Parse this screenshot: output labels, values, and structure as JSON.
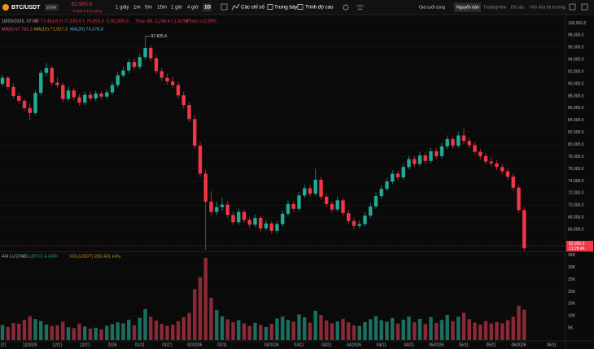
{
  "toolbar": {
    "symbol": "BTC/USDT",
    "leverage": "10 lần",
    "price": "62,905.0",
    "change": "-3,626.2 (-5.44%)",
    "timeframes": [
      "1 giây",
      "1m",
      "5m",
      "15m",
      "1 giờ",
      "4 giờ",
      "1D"
    ],
    "tools": [
      "Các chỉ số",
      "Trưng bày",
      "Trình độ cao"
    ],
    "price_type": "Giá cuối cùng",
    "views": [
      "Nguyên bản",
      "TradingView",
      "Độ sâu",
      "Vốn hóa thị trường"
    ]
  },
  "legend": {
    "date": "18/05/2026, 07:00",
    "ohlc": [
      "O 77,453.8",
      "H 77,533.0",
      "L 76,053.0",
      "C 82,905.0"
    ],
    "change": "Thay đổi -1,240.4 (-1.62%)",
    "range": "Phạm vi 2.28%",
    "ma": [
      "MA(5) 67,781.3",
      "MA(10) 71,027.3",
      "MA(20) 74,078.8"
    ],
    "ma_colors": [
      "#e84a8a",
      "#e0a526",
      "#4fb6d8"
    ]
  },
  "chart_data": {
    "type": "candlestick",
    "categories": [
      "1/21",
      null,
      null,
      null,
      null,
      "12/2025",
      null,
      null,
      null,
      null,
      "12/11",
      null,
      null,
      null,
      null,
      "12/21",
      null,
      null,
      null,
      null,
      "2026",
      null,
      null,
      null,
      null,
      "01/11",
      null,
      null,
      null,
      null,
      "01/21",
      null,
      null,
      null,
      null,
      "02/2026",
      null,
      null,
      null,
      null,
      "02/11",
      null,
      null,
      null,
      null,
      null,
      null,
      null,
      null,
      "03/2026",
      null,
      null,
      null,
      null,
      "03/11",
      null,
      null,
      null,
      null,
      "03/21",
      null,
      null,
      null,
      null,
      "04/2026",
      null,
      null,
      null,
      null,
      "04/11",
      null,
      null,
      null,
      null,
      "04/21",
      null,
      null,
      null,
      null,
      "05/2026",
      null,
      null,
      null,
      null,
      "05/11",
      null,
      null,
      null,
      null,
      "05/21",
      null,
      null,
      null,
      null,
      "06/2026",
      null,
      null,
      null,
      null,
      null,
      "06/11"
    ],
    "ohlc": [
      [
        90000,
        91500,
        89600,
        91000
      ],
      [
        91000,
        91300,
        89100,
        89500
      ],
      [
        89500,
        90100,
        87600,
        88000
      ],
      [
        88000,
        88600,
        86700,
        87200
      ],
      [
        87200,
        87600,
        85500,
        86000
      ],
      [
        86000,
        86800,
        84000,
        85200
      ],
      [
        85200,
        88900,
        84800,
        88500
      ],
      [
        88500,
        92300,
        88100,
        91800
      ],
      [
        91800,
        93400,
        91200,
        92600
      ],
      [
        92600,
        93000,
        89700,
        90200
      ],
      [
        90200,
        91100,
        89300,
        89800
      ],
      [
        89800,
        90200,
        87000,
        87500
      ],
      [
        87500,
        89500,
        87100,
        88900
      ],
      [
        88900,
        89400,
        87300,
        87800
      ],
      [
        87800,
        88300,
        86400,
        86900
      ],
      [
        86900,
        88700,
        86500,
        88200
      ],
      [
        88200,
        88800,
        87100,
        87600
      ],
      [
        87600,
        88900,
        87200,
        88400
      ],
      [
        88400,
        88900,
        87400,
        87900
      ],
      [
        87900,
        89100,
        87500,
        88600
      ],
      [
        88600,
        90300,
        88200,
        89800
      ],
      [
        89800,
        91900,
        89400,
        91400
      ],
      [
        91400,
        92800,
        91000,
        92200
      ],
      [
        92200,
        94100,
        91800,
        93600
      ],
      [
        93600,
        94200,
        92300,
        92800
      ],
      [
        92800,
        95000,
        92400,
        94400
      ],
      [
        94400,
        97825.4,
        94000,
        95900
      ],
      [
        95900,
        96400,
        93700,
        94200
      ],
      [
        94200,
        94700,
        91600,
        92100
      ],
      [
        92100,
        92600,
        90500,
        91000
      ],
      [
        91000,
        91700,
        89900,
        90400
      ],
      [
        90400,
        91200,
        89300,
        89800
      ],
      [
        89800,
        90300,
        87600,
        88100
      ],
      [
        88100,
        88700,
        86000,
        86500
      ],
      [
        86500,
        87000,
        83700,
        84200
      ],
      [
        84200,
        84800,
        79300,
        79800
      ],
      [
        79800,
        80400,
        74600,
        75200
      ],
      [
        75200,
        75900,
        62600,
        70600
      ],
      [
        70600,
        72300,
        68300,
        68900
      ],
      [
        68900,
        70600,
        68400,
        69700
      ],
      [
        69700,
        71200,
        69100,
        70100
      ],
      [
        70100,
        70700,
        67900,
        68400
      ],
      [
        68400,
        69000,
        66700,
        67200
      ],
      [
        67200,
        69500,
        66800,
        68900
      ],
      [
        68900,
        69300,
        67100,
        67600
      ],
      [
        67600,
        68100,
        66300,
        66800
      ],
      [
        66800,
        68500,
        66400,
        67900
      ],
      [
        67900,
        68300,
        65700,
        66200
      ],
      [
        66200,
        67600,
        65800,
        67000
      ],
      [
        67000,
        67400,
        65300,
        65800
      ],
      [
        65800,
        67500,
        65400,
        66900
      ],
      [
        66900,
        69200,
        66500,
        68600
      ],
      [
        68600,
        70800,
        68200,
        70200
      ],
      [
        70200,
        70700,
        68900,
        69400
      ],
      [
        69400,
        72200,
        69000,
        71600
      ],
      [
        71600,
        73400,
        71200,
        72800
      ],
      [
        72800,
        73300,
        71400,
        71900
      ],
      [
        71900,
        76000,
        71500,
        74200
      ],
      [
        74200,
        74700,
        70900,
        71400
      ],
      [
        71400,
        71900,
        69700,
        70200
      ],
      [
        70200,
        70700,
        68800,
        69300
      ],
      [
        69300,
        71400,
        68900,
        70800
      ],
      [
        70800,
        71200,
        68200,
        68700
      ],
      [
        68700,
        69200,
        66900,
        67400
      ],
      [
        67400,
        67900,
        66100,
        66600
      ],
      [
        66600,
        67500,
        66200,
        66900
      ],
      [
        66900,
        68900,
        66500,
        68300
      ],
      [
        68300,
        70400,
        67900,
        69800
      ],
      [
        69800,
        72100,
        69400,
        71500
      ],
      [
        71500,
        73300,
        71100,
        72700
      ],
      [
        72700,
        74500,
        72300,
        73900
      ],
      [
        73900,
        75800,
        73500,
        75200
      ],
      [
        75200,
        75700,
        74100,
        74600
      ],
      [
        74600,
        76900,
        74200,
        76300
      ],
      [
        76300,
        78200,
        75900,
        77600
      ],
      [
        77600,
        78100,
        76300,
        76800
      ],
      [
        76800,
        78800,
        76400,
        78200
      ],
      [
        78200,
        78700,
        76800,
        77300
      ],
      [
        77300,
        79500,
        76900,
        78900
      ],
      [
        78900,
        79400,
        77600,
        78100
      ],
      [
        78100,
        80300,
        77700,
        79700
      ],
      [
        79700,
        81500,
        79300,
        80900
      ],
      [
        80900,
        81400,
        79300,
        79800
      ],
      [
        79800,
        82100,
        79400,
        81500
      ],
      [
        81500,
        82700,
        80100,
        80600
      ],
      [
        80600,
        81100,
        79400,
        79900
      ],
      [
        79900,
        80400,
        78300,
        78800
      ],
      [
        78800,
        79300,
        77600,
        78100
      ],
      [
        78100,
        78600,
        76700,
        77200
      ],
      [
        77200,
        77900,
        76400,
        76900
      ],
      [
        76900,
        77400,
        75800,
        76300
      ],
      [
        76300,
        76800,
        75100,
        75600
      ],
      [
        75600,
        76100,
        74200,
        74700
      ],
      [
        74700,
        75200,
        72400,
        72900
      ],
      [
        72900,
        73400,
        68700,
        69200
      ],
      [
        69200,
        69700,
        62500,
        62905
      ],
      null,
      null,
      null,
      null,
      null
    ],
    "volume": [
      6200,
      5400,
      7100,
      6800,
      8300,
      9800,
      8700,
      7900,
      6400,
      5800,
      6100,
      7600,
      5300,
      4900,
      6800,
      5600,
      4700,
      5100,
      4400,
      5900,
      6600,
      7300,
      6900,
      8400,
      6100,
      9200,
      12800,
      9600,
      8100,
      6700,
      5900,
      6300,
      7800,
      9400,
      11200,
      21000,
      26000,
      34000,
      17500,
      12400,
      9800,
      8600,
      7400,
      8200,
      6900,
      5800,
      7100,
      6300,
      5400,
      6700,
      8900,
      9700,
      8300,
      7600,
      10600,
      9400,
      7200,
      12100,
      10300,
      8100,
      6900,
      7700,
      8800,
      7300,
      6100,
      5900,
      7400,
      8600,
      9900,
      8200,
      7600,
      9100,
      6800,
      8400,
      9700,
      7300,
      8800,
      6600,
      9500,
      7100,
      8300,
      10400,
      7800,
      9600,
      11300,
      8700,
      7200,
      6400,
      7900,
      6800,
      7400,
      6900,
      8200,
      9600,
      14200,
      12600,
      null,
      null,
      null,
      null,
      null
    ],
    "ylim": [
      62400,
      101400
    ],
    "yticks": [
      {
        "value": 66000,
        "label": "66,000.0"
      },
      {
        "value": 68000,
        "label": "68,000.0"
      },
      {
        "value": 70000,
        "label": "70,000.0"
      },
      {
        "value": 72000,
        "label": "72,000.0"
      },
      {
        "value": 74000,
        "label": "74,000.0"
      },
      {
        "value": 76000,
        "label": "76,000.0"
      },
      {
        "value": 78000,
        "label": "78,000.0"
      },
      {
        "value": 80000,
        "label": "80,000.0"
      },
      {
        "value": 82000,
        "label": "82,000.0"
      },
      {
        "value": 84000,
        "label": "84,000.0"
      },
      {
        "value": 86000,
        "label": "86,000.0"
      },
      {
        "value": 88000,
        "label": "88,000.0"
      },
      {
        "value": 90000,
        "label": "90,000.0"
      },
      {
        "value": 92000,
        "label": "92,000.0"
      },
      {
        "value": 94000,
        "label": "94,000.0"
      },
      {
        "value": 96000,
        "label": "96,000.0"
      },
      {
        "value": 98000,
        "label": "98,000.0"
      },
      {
        "value": 100000,
        "label": "100,000.0"
      }
    ],
    "volume_ylim": [
      0,
      36300
    ],
    "volume_yticks": [
      {
        "value": 5000,
        "label": "5K"
      },
      {
        "value": 10000,
        "label": "10K"
      },
      {
        "value": 15000,
        "label": "15K"
      },
      {
        "value": 20000,
        "label": "20K"
      },
      {
        "value": 25000,
        "label": "25K"
      },
      {
        "value": 30000,
        "label": "30K"
      },
      {
        "value": 35000,
        "label": "35K"
      }
    ],
    "annotation": "97,825.4",
    "last_price": "62,905.0",
    "countdown": "21:28:46",
    "volume_title": "ÂM LƯỢNG",
    "volume_legend": [
      "VOL(BTC) 4.465K",
      "VOL(USDT) 280,431 triệu"
    ],
    "up_color": "#22ab94",
    "down_color": "#f23645",
    "volume_up_color": "#1c6e60",
    "volume_down_color": "#8a2a36",
    "grid": true
  }
}
